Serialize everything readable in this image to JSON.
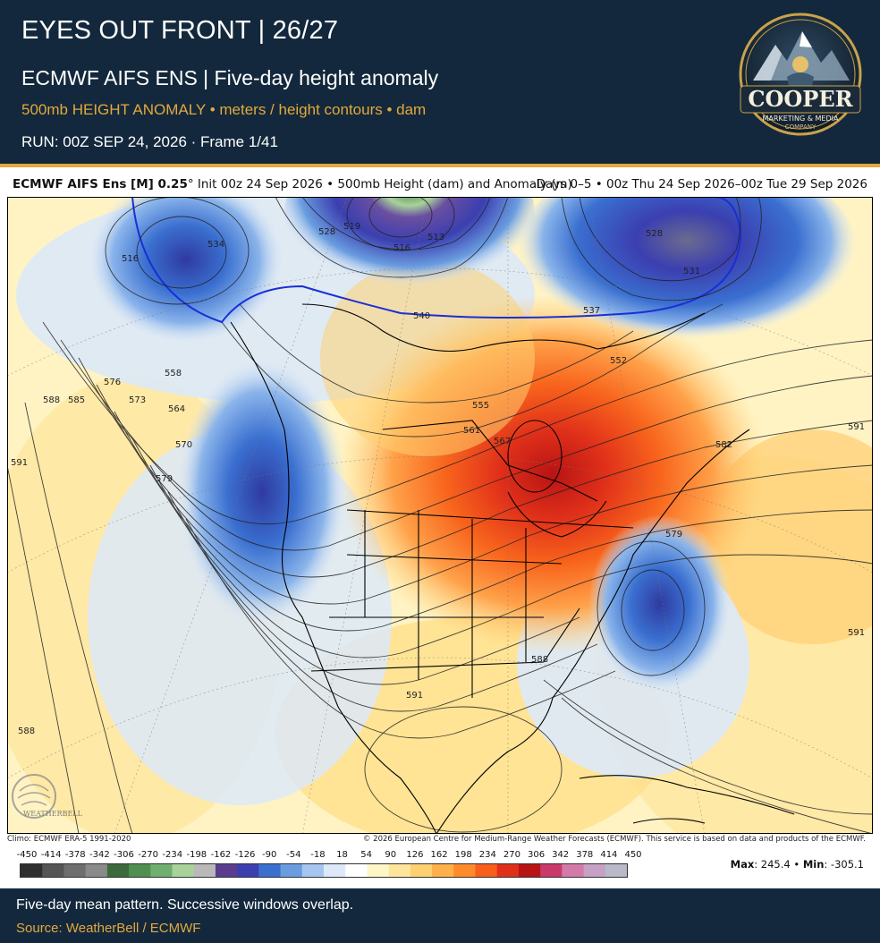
{
  "header": {
    "title": "EYES OUT FRONT | 26/27",
    "subtitle": "ECMWF AIFS ENS | Five-day height anomaly",
    "product_pre": "500mb ",
    "product_bold": "HEIGHT ANOMALY",
    "product_post": " • meters / height contours • dam",
    "run": "RUN: 00Z SEP 24, 2026 · Frame 1/41"
  },
  "logo": {
    "name": "COOPER",
    "line2": "MARKETING & MEDIA",
    "line3": "COMPANY"
  },
  "map": {
    "title_model": "ECMWF AIFS Ens [M] 0.25",
    "title_rest": "° Init 00z 24 Sep 2026 • 500mb Height (dam) and Anomaly (m)",
    "title_right": "Days 0–5 • 00z Thu 24 Sep 2026–00z Tue 29 Sep 2026",
    "climo": "Climo: ECMWF ERA-5 1991-2020",
    "copyright": "© 2026 European Centre for Medium-Range Weather Forecasts (ECMWF). This service is based on data and products of the ECMWF.",
    "watermark": "WEATHERBELL",
    "contour_labels": [
      "588",
      "585",
      "576",
      "573",
      "558",
      "564",
      "570",
      "579",
      "591",
      "534",
      "516",
      "528",
      "519",
      "516",
      "513",
      "540",
      "537",
      "528",
      "531",
      "552",
      "555",
      "561",
      "567",
      "582",
      "591",
      "579",
      "588",
      "591",
      "591",
      "588"
    ],
    "colorbar": {
      "ticks": [
        "-450",
        "-414",
        "-378",
        "-342",
        "-306",
        "-270",
        "-234",
        "-198",
        "-162",
        "-126",
        "-90",
        "-54",
        "-18",
        "18",
        "54",
        "90",
        "126",
        "162",
        "198",
        "234",
        "270",
        "306",
        "342",
        "378",
        "414",
        "450"
      ],
      "colors": [
        "#2f2f2f",
        "#555555",
        "#6e6e6e",
        "#8a8a8a",
        "#3d6a3d",
        "#4f8f4f",
        "#6fb06f",
        "#a8d29a",
        "#b9b9b9",
        "#5a3d8f",
        "#3b3fb0",
        "#3a6fd0",
        "#6a9de0",
        "#a7c6ef",
        "#dde9f8",
        "#ffffff",
        "#fff6c8",
        "#ffe59c",
        "#ffd070",
        "#ffb04a",
        "#ff8a2a",
        "#f85e1c",
        "#e0301a",
        "#b81414",
        "#c93a6a",
        "#d47aa8",
        "#c7a0c6",
        "#b9b9c8"
      ],
      "max_label": "Max",
      "max_value": ": 245.4 • ",
      "min_label": "Min",
      "min_value": ": -305.1"
    }
  },
  "footer": {
    "caption": "Five-day mean pattern. Successive windows overlap.",
    "source": "Source: WeatherBell / ECMWF"
  }
}
